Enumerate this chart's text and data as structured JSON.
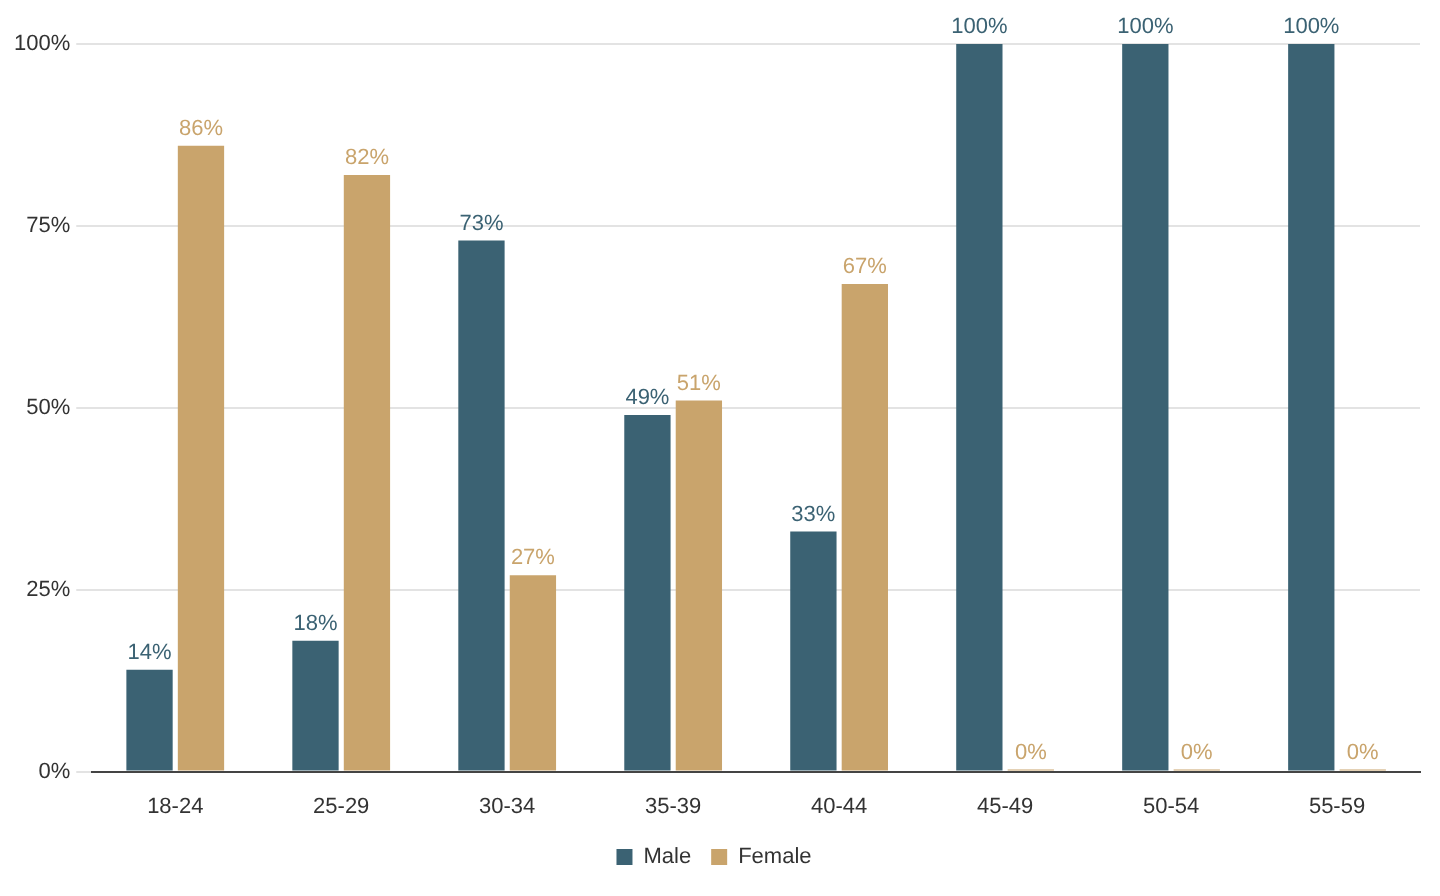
{
  "chart_data": {
    "type": "bar",
    "categories": [
      "18-24",
      "25-29",
      "30-34",
      "35-39",
      "40-44",
      "45-49",
      "50-54",
      "55-59"
    ],
    "series": [
      {
        "name": "Male",
        "color": "#3b6273",
        "values": [
          14,
          18,
          73,
          49,
          33,
          100,
          100,
          100
        ],
        "value_labels": [
          "14%",
          "18%",
          "73%",
          "49%",
          "33%",
          "100%",
          "100%",
          "100%"
        ]
      },
      {
        "name": "Female",
        "color": "#c9a46c",
        "values": [
          86,
          82,
          27,
          51,
          67,
          0,
          0,
          0
        ],
        "value_labels": [
          "86%",
          "82%",
          "27%",
          "51%",
          "67%",
          "0%",
          "0%",
          "0%"
        ]
      }
    ],
    "ylim": [
      0,
      100
    ],
    "yticks": [
      {
        "value": 0,
        "label": "0%"
      },
      {
        "value": 25,
        "label": "25%"
      },
      {
        "value": 50,
        "label": "50%"
      },
      {
        "value": 75,
        "label": "75%"
      },
      {
        "value": 100,
        "label": "100%"
      }
    ],
    "grid": "y",
    "legend": "bottom"
  }
}
